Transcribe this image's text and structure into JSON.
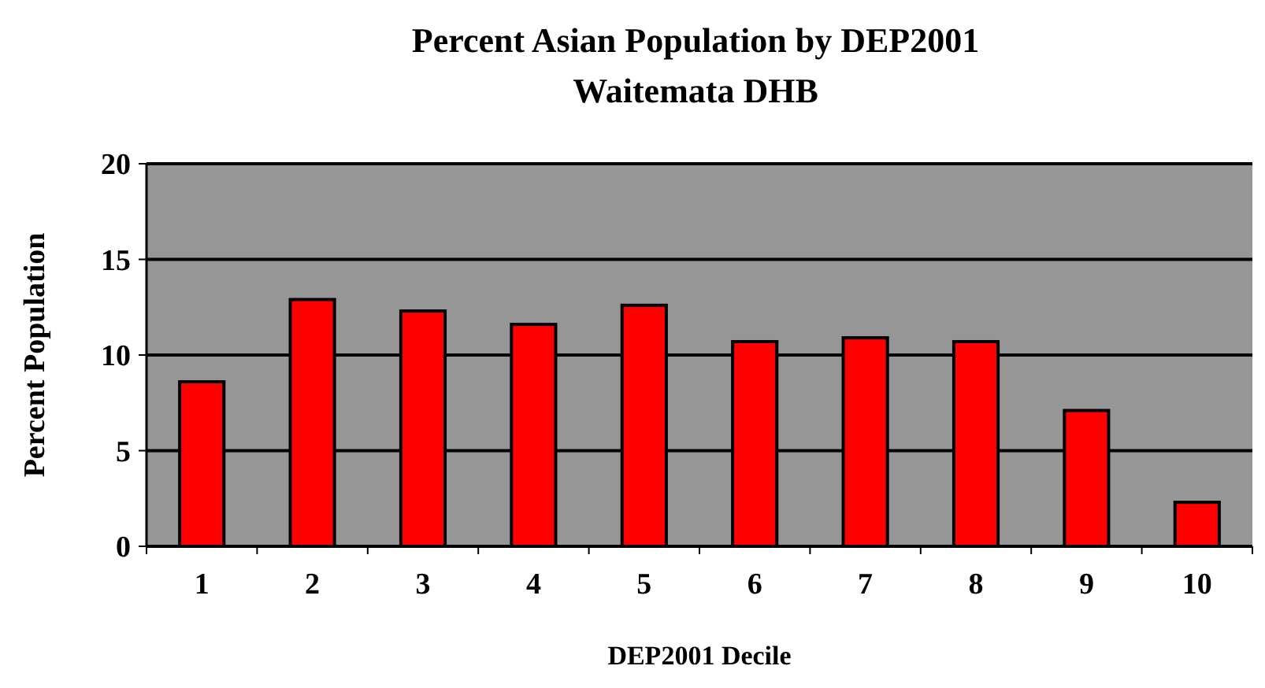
{
  "chart_data": {
    "type": "bar",
    "title": "Percent Asian Population by DEP2001",
    "subtitle": "Waitemata DHB",
    "xlabel": "DEP2001 Decile",
    "ylabel": "Percent Population",
    "categories": [
      "1",
      "2",
      "3",
      "4",
      "5",
      "6",
      "7",
      "8",
      "9",
      "10"
    ],
    "values": [
      8.6,
      12.9,
      12.3,
      11.6,
      12.6,
      10.7,
      10.9,
      10.7,
      7.1,
      2.3
    ],
    "color": "#ff0000",
    "ylim": [
      0,
      20
    ],
    "yticks": [
      0,
      5,
      10,
      15,
      20
    ],
    "grid": "y"
  }
}
